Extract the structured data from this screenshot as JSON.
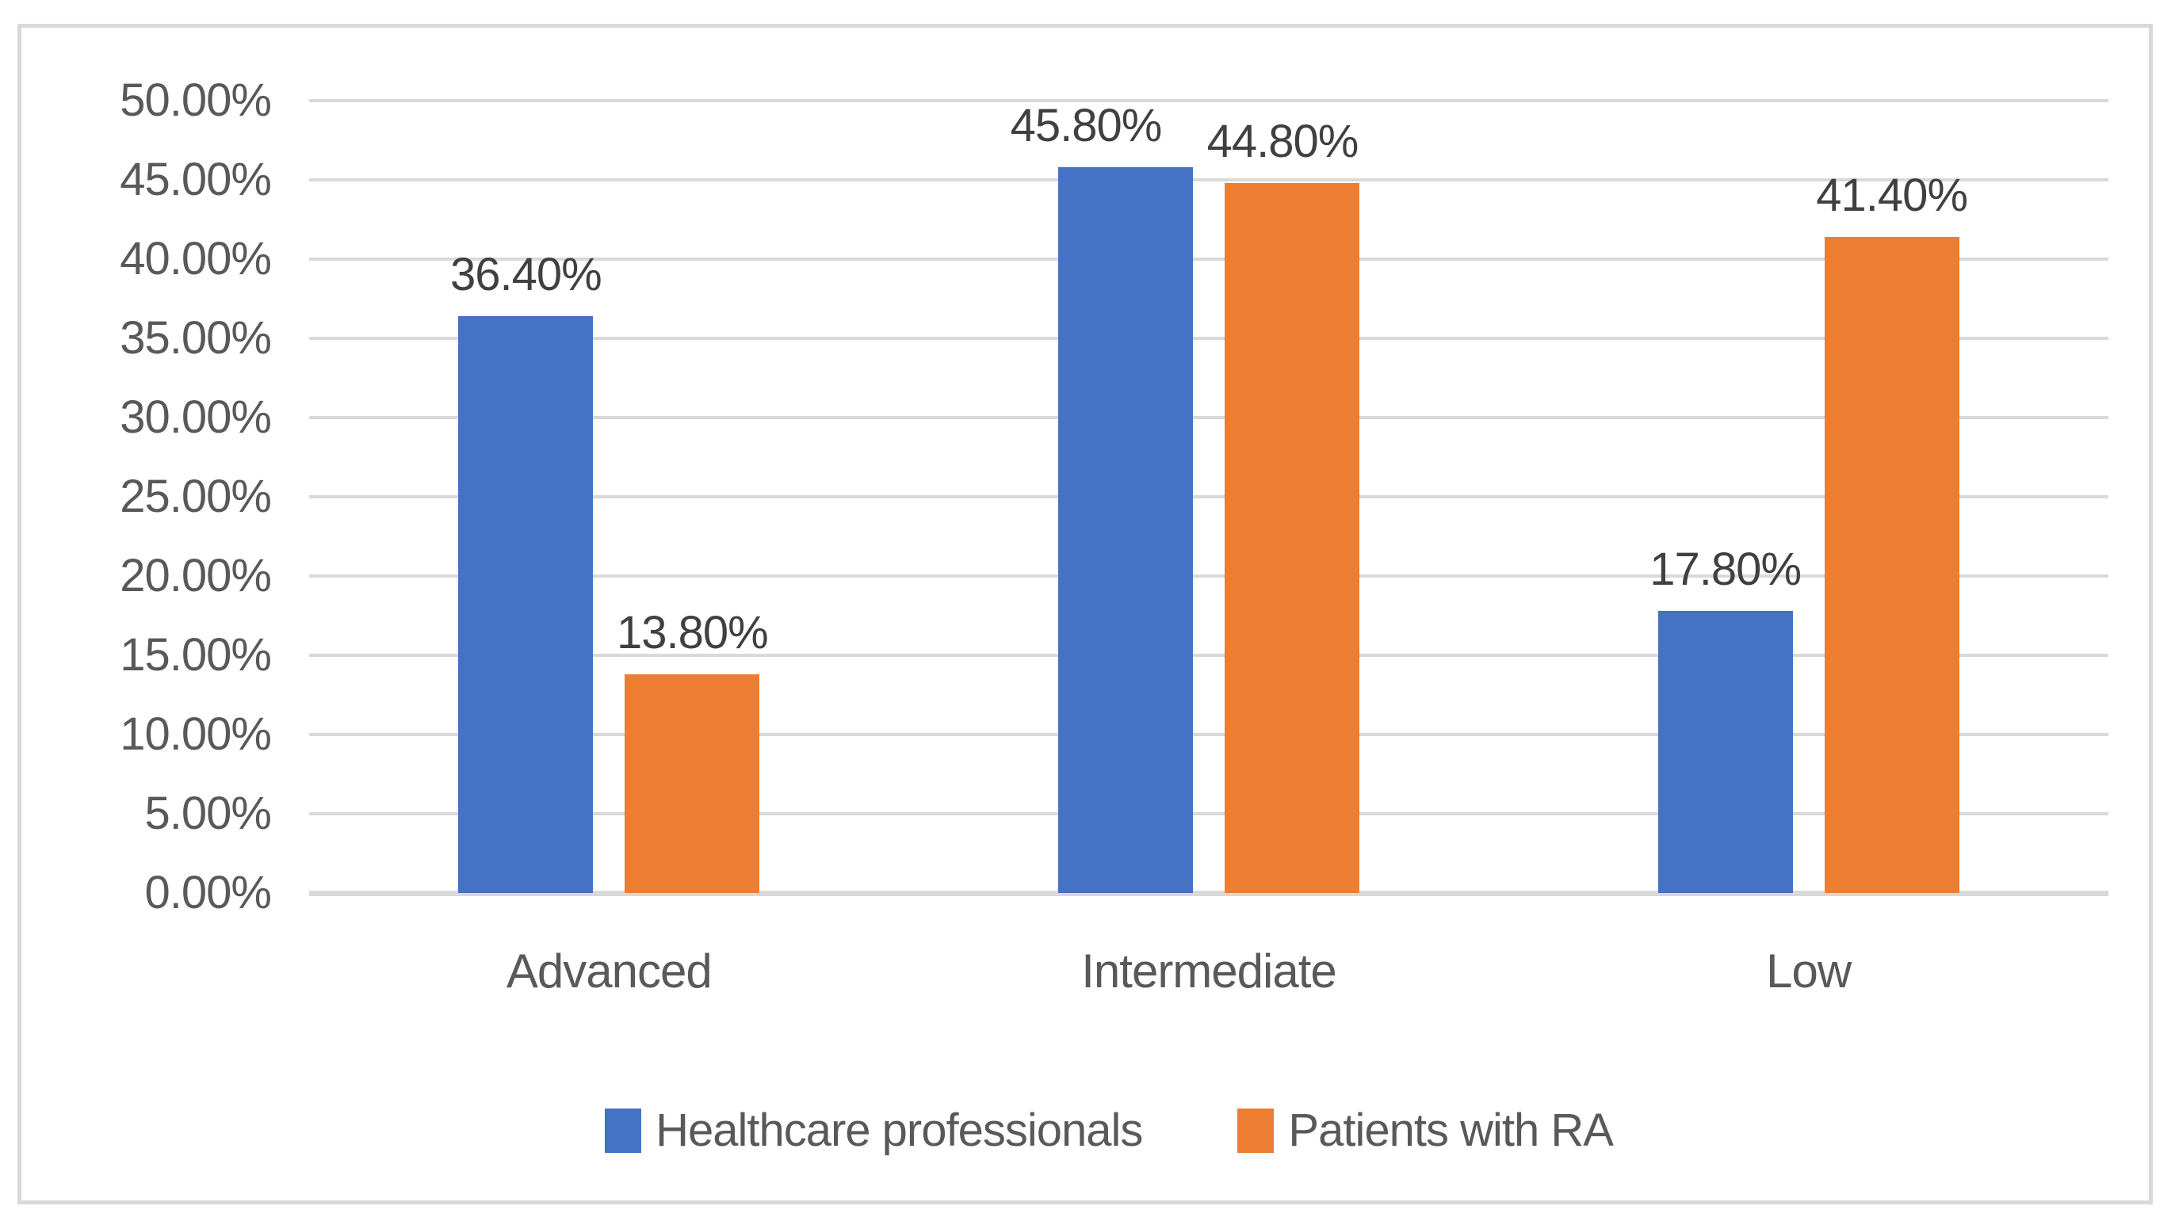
{
  "chart_data": {
    "type": "bar",
    "categories": [
      "Advanced",
      "Intermediate",
      "Low"
    ],
    "series": [
      {
        "name": "Healthcare professionals",
        "color": "#4472C4",
        "values": [
          36.4,
          45.8,
          17.8
        ],
        "data_labels": [
          "36.40%",
          "45.80%",
          "17.80%"
        ]
      },
      {
        "name": "Patients with RA",
        "color": "#ED7D31",
        "values": [
          13.8,
          44.8,
          41.4
        ],
        "data_labels": [
          "13.80%",
          "44.80%",
          "41.40%"
        ]
      }
    ],
    "y_axis": {
      "min": 0,
      "max": 50,
      "step": 5,
      "tick_labels": [
        "0.00%",
        "5.00%",
        "10.00%",
        "15.00%",
        "20.00%",
        "25.00%",
        "30.00%",
        "35.00%",
        "40.00%",
        "45.00%",
        "50.00%"
      ]
    },
    "grid": true,
    "legend_position": "bottom",
    "colors": {
      "gridline": "#D9D9D9",
      "frame_border": "#D9D9D9",
      "axis_text": "#595959",
      "data_label_text": "#404040"
    }
  }
}
